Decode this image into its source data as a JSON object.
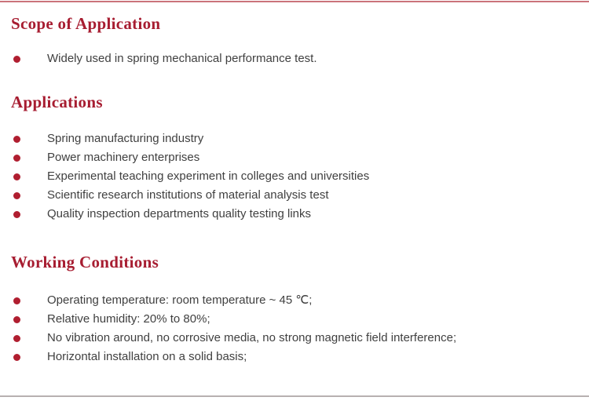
{
  "colors": {
    "heading": "#a71d31",
    "bullet": "#b01e30",
    "body_text": "#404040",
    "top_rule": "#cb737b",
    "bottom_rule": "#b7b0b0",
    "background": "#ffffff"
  },
  "sections": [
    {
      "title": "Scope of Application",
      "items": [
        "Widely used in spring mechanical performance test."
      ]
    },
    {
      "title": "Applications",
      "items": [
        "Spring manufacturing industry",
        "Power machinery enterprises",
        "Experimental teaching experiment in colleges and universities",
        "Scientific research institutions of material analysis test",
        "Quality inspection departments quality testing links"
      ]
    },
    {
      "title": "Working Conditions",
      "items": [
        "Operating temperature: room temperature ~ 45 ℃;",
        "Relative humidity: 20% to 80%;",
        "No vibration around, no corrosive media, no strong magnetic field interference;",
        "Horizontal installation on a solid basis;"
      ]
    }
  ]
}
